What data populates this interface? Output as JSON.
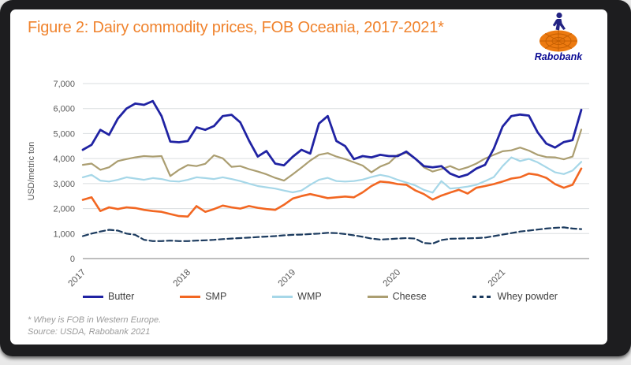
{
  "header": {
    "title": "Figure 2: Dairy commodity prices, FOB Oceania, 2017-2021*",
    "title_color": "#F0832D"
  },
  "logo": {
    "text": "Rabobank",
    "text_color": "#0B0B94",
    "globe_color": "#EC7A10",
    "figure_color": "#232383"
  },
  "footnote": {
    "line1": "* Whey is FOB in Western Europe.",
    "line2": "Source: USDA, Rabobank 2021"
  },
  "chart_data": {
    "type": "line",
    "title": "Dairy commodity prices, FOB Oceania, 2017-2021",
    "ylabel": "USD/metric ton",
    "ylim": [
      0,
      7000
    ],
    "grid": "horizontal",
    "legend_position": "bottom",
    "x_unit": "month",
    "x_start": "2017-01",
    "x_end": "2021-10",
    "y_ticks": [
      0,
      1000,
      2000,
      3000,
      4000,
      5000,
      6000,
      7000
    ],
    "y_tick_labels": [
      "0",
      "1,000",
      "2,000",
      "3,000",
      "4,000",
      "5,000",
      "6,000",
      "7,000"
    ],
    "x_tick_labels": [
      "2017",
      "2018",
      "2019",
      "2020",
      "2021"
    ],
    "x_tick_month_indices": [
      0,
      12,
      24,
      36,
      48
    ],
    "series": [
      {
        "name": "Butter",
        "color": "#2023A3",
        "style": "solid",
        "width": 2.8,
        "values": [
          4350,
          4550,
          5150,
          4950,
          5600,
          6000,
          6200,
          6150,
          6300,
          5700,
          4680,
          4650,
          4700,
          5250,
          5150,
          5300,
          5700,
          5750,
          5450,
          4720,
          4080,
          4300,
          3800,
          3730,
          4070,
          4350,
          4200,
          5400,
          5700,
          4700,
          4500,
          3980,
          4100,
          4050,
          4150,
          4100,
          4100,
          4280,
          4000,
          3700,
          3650,
          3700,
          3400,
          3260,
          3360,
          3600,
          3750,
          4400,
          5280,
          5700,
          5760,
          5720,
          5050,
          4600,
          4440,
          4660,
          4740,
          5950
        ]
      },
      {
        "name": "SMP",
        "color": "#F26722",
        "style": "solid",
        "width": 2.6,
        "values": [
          2350,
          2450,
          1900,
          2050,
          1980,
          2050,
          2020,
          1950,
          1900,
          1870,
          1780,
          1700,
          1680,
          2100,
          1870,
          1980,
          2120,
          2050,
          2000,
          2100,
          2030,
          1980,
          1950,
          2150,
          2400,
          2500,
          2580,
          2500,
          2420,
          2450,
          2480,
          2450,
          2650,
          2900,
          3080,
          3050,
          2980,
          2950,
          2730,
          2580,
          2360,
          2520,
          2640,
          2750,
          2600,
          2830,
          2900,
          2980,
          3080,
          3200,
          3250,
          3400,
          3350,
          3230,
          2980,
          2830,
          2950,
          3600
        ]
      },
      {
        "name": "WMP",
        "color": "#A6D7E8",
        "style": "solid",
        "width": 2.2,
        "values": [
          3250,
          3350,
          3120,
          3080,
          3150,
          3250,
          3200,
          3150,
          3220,
          3180,
          3100,
          3080,
          3150,
          3250,
          3220,
          3180,
          3250,
          3180,
          3100,
          3000,
          2900,
          2850,
          2800,
          2720,
          2650,
          2720,
          2950,
          3150,
          3230,
          3100,
          3080,
          3100,
          3160,
          3260,
          3350,
          3280,
          3150,
          3040,
          2930,
          2750,
          2640,
          3100,
          2800,
          2830,
          2880,
          2950,
          3100,
          3260,
          3700,
          4050,
          3900,
          3990,
          3850,
          3650,
          3450,
          3380,
          3520,
          3870
        ]
      },
      {
        "name": "Cheese",
        "color": "#AB9E71",
        "style": "solid",
        "width": 2.2,
        "values": [
          3750,
          3800,
          3550,
          3650,
          3900,
          3980,
          4050,
          4100,
          4080,
          4100,
          3300,
          3550,
          3740,
          3700,
          3790,
          4130,
          4010,
          3670,
          3700,
          3580,
          3480,
          3370,
          3230,
          3120,
          3370,
          3640,
          3920,
          4150,
          4220,
          4080,
          3980,
          3850,
          3720,
          3450,
          3680,
          3820,
          4150,
          4230,
          4000,
          3650,
          3480,
          3580,
          3700,
          3550,
          3650,
          3800,
          4000,
          4150,
          4290,
          4330,
          4440,
          4320,
          4150,
          4060,
          4050,
          3970,
          4080,
          5160
        ]
      },
      {
        "name": "Whey powder",
        "color": "#1B3A5E",
        "style": "dashed",
        "width": 2.2,
        "values": [
          900,
          1000,
          1080,
          1150,
          1120,
          1000,
          950,
          750,
          700,
          700,
          720,
          700,
          700,
          720,
          730,
          750,
          780,
          800,
          820,
          840,
          860,
          880,
          900,
          930,
          950,
          960,
          980,
          1000,
          1030,
          1020,
          980,
          930,
          870,
          800,
          760,
          780,
          800,
          820,
          800,
          620,
          600,
          740,
          790,
          800,
          810,
          820,
          840,
          900,
          960,
          1020,
          1080,
          1120,
          1160,
          1200,
          1230,
          1250,
          1200,
          1180
        ]
      }
    ]
  }
}
